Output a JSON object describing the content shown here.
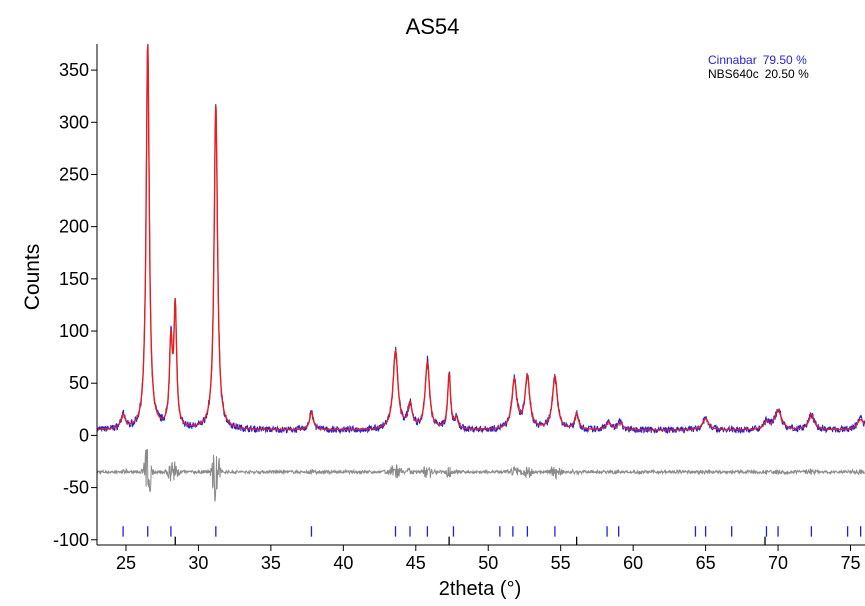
{
  "chart_data": {
    "type": "line",
    "title": "AS54",
    "xlabel": "2theta (°)",
    "ylabel": "Counts",
    "xlim": [
      23,
      76
    ],
    "ylim": [
      -105,
      375
    ],
    "xticks": [
      25,
      30,
      35,
      40,
      45,
      50,
      55,
      60,
      65,
      70,
      75
    ],
    "xtick_labels": [
      "25",
      "30",
      "35",
      "40",
      "45",
      "50",
      "55",
      "60",
      "65",
      "70",
      "75"
    ],
    "yticks": [
      -100,
      -50,
      0,
      50,
      100,
      150,
      200,
      250,
      300,
      350
    ],
    "ytick_labels": [
      "-100",
      "-50",
      "0",
      "50",
      "100",
      "150",
      "200",
      "250",
      "300",
      "350"
    ],
    "legend_position": "top-right",
    "legend": [
      {
        "label": "Cinnabar",
        "value": "79.50 %",
        "color": "#1f1fe0"
      },
      {
        "label": "NBS640c",
        "value": "20.50 %",
        "color": "#000000"
      }
    ],
    "observed_color": "#1f1fe0",
    "calculated_color": "#e61e1e",
    "difference_color": "#8a8a8a",
    "baseline": 5,
    "difference_offset": -35,
    "peaks": [
      {
        "x": 24.8,
        "y": 18,
        "w": 0.18
      },
      {
        "x": 26.5,
        "y": 375,
        "w": 0.13
      },
      {
        "x": 28.1,
        "y": 85,
        "w": 0.12
      },
      {
        "x": 28.4,
        "y": 118,
        "w": 0.11
      },
      {
        "x": 31.2,
        "y": 318,
        "w": 0.14
      },
      {
        "x": 37.8,
        "y": 22,
        "w": 0.15
      },
      {
        "x": 43.6,
        "y": 80,
        "w": 0.2
      },
      {
        "x": 44.6,
        "y": 28,
        "w": 0.18
      },
      {
        "x": 45.8,
        "y": 69,
        "w": 0.18
      },
      {
        "x": 47.3,
        "y": 58,
        "w": 0.12
      },
      {
        "x": 47.8,
        "y": 15,
        "w": 0.12
      },
      {
        "x": 51.8,
        "y": 52,
        "w": 0.2
      },
      {
        "x": 52.7,
        "y": 55,
        "w": 0.2
      },
      {
        "x": 54.6,
        "y": 56,
        "w": 0.2
      },
      {
        "x": 56.1,
        "y": 20,
        "w": 0.15
      },
      {
        "x": 58.3,
        "y": 12,
        "w": 0.2
      },
      {
        "x": 59.1,
        "y": 12,
        "w": 0.2
      },
      {
        "x": 65.0,
        "y": 16,
        "w": 0.25
      },
      {
        "x": 69.2,
        "y": 12,
        "w": 0.2
      },
      {
        "x": 70.0,
        "y": 24,
        "w": 0.28
      },
      {
        "x": 72.3,
        "y": 20,
        "w": 0.22
      },
      {
        "x": 75.7,
        "y": 15,
        "w": 0.3
      }
    ],
    "reflections_cinnabar": [
      24.8,
      26.5,
      28.1,
      31.2,
      37.8,
      43.6,
      44.6,
      45.8,
      47.6,
      50.8,
      51.7,
      52.7,
      54.6,
      58.2,
      59.0,
      64.3,
      65.0,
      66.8,
      69.2,
      70.0,
      72.3,
      74.8,
      75.7
    ],
    "reflections_nbs640c": [
      28.4,
      47.3,
      56.1,
      69.1
    ]
  }
}
